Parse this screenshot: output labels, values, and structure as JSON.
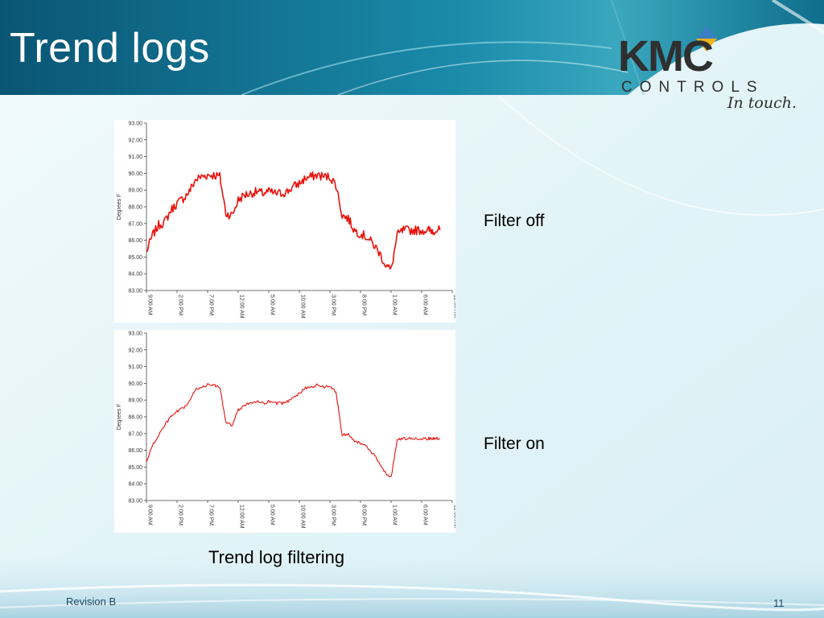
{
  "slide": {
    "title": "Trend logs",
    "brand": {
      "name": "KMC",
      "sub": "CONTROLS",
      "tagline": "In touch."
    },
    "label_filter_off": "Filter off",
    "label_filter_on": "Filter on",
    "caption": "Trend log filtering",
    "footer_left": "Revision B",
    "page_number": "11"
  },
  "colors": {
    "series": "#e8120c",
    "title_band": "#0d5d7a",
    "accent": "#1e86a8"
  },
  "chart_data": [
    {
      "type": "line",
      "ylabel": "Degrees F",
      "ylim": [
        83,
        93
      ],
      "yticks": [
        "93.00",
        "92.00",
        "91.00",
        "90.00",
        "89.00",
        "88.00",
        "87.00",
        "86.00",
        "85.00",
        "84.00",
        "83.00"
      ],
      "xticks": [
        "9:00 AM",
        "2:00 PM",
        "7:00 PM",
        "12:00 AM",
        "5:00 AM",
        "10:00 AM",
        "3:00 PM",
        "8:00 PM",
        "1:00 AM",
        "6:00 AM",
        "11:00 AM"
      ],
      "xlim": [
        0,
        50
      ],
      "noise": 0.55,
      "series": [
        {
          "x": [
            0,
            1,
            2,
            3,
            4,
            5,
            6,
            7,
            8,
            9,
            10,
            11,
            12,
            13,
            14,
            15,
            16,
            17,
            18,
            19,
            20,
            21,
            22,
            23,
            24,
            25,
            26,
            27,
            28,
            29,
            30,
            31,
            32,
            33,
            34,
            35,
            36,
            37,
            38,
            39,
            40,
            41,
            42,
            43,
            44,
            45,
            46,
            46.5,
            47,
            48
          ],
          "y": [
            85.3,
            86.3,
            86.9,
            87.1,
            87.8,
            88.2,
            88.5,
            88.9,
            89.6,
            89.8,
            89.9,
            89.9,
            89.8,
            87.6,
            87.5,
            88.4,
            88.7,
            88.8,
            88.9,
            88.8,
            88.9,
            88.8,
            88.8,
            88.9,
            89.2,
            89.4,
            89.7,
            89.8,
            89.9,
            89.8,
            89.8,
            89.3,
            87.5,
            87.3,
            86.6,
            86.4,
            86.2,
            85.8,
            85.3,
            84.6,
            84.2,
            86.3,
            86.6,
            86.6,
            86.6,
            86.6,
            86.6,
            86.6,
            86.6,
            86.6
          ]
        }
      ]
    },
    {
      "type": "line",
      "ylabel": "Degrees F",
      "ylim": [
        83,
        93
      ],
      "yticks": [
        "93.00",
        "92.00",
        "91.00",
        "90.00",
        "89.00",
        "88.00",
        "87.00",
        "86.00",
        "85.00",
        "84.00",
        "83.00"
      ],
      "xticks": [
        "9:00 AM",
        "2:00 PM",
        "7:00 PM",
        "12:00 AM",
        "5:00 AM",
        "10:00 AM",
        "3:00 PM",
        "8:00 PM",
        "1:00 AM",
        "6:00 AM",
        "11:00 AM"
      ],
      "xlim": [
        0,
        50
      ],
      "noise": 0.18,
      "series": [
        {
          "x": [
            0,
            1,
            2,
            3,
            4,
            5,
            6,
            7,
            8,
            9,
            10,
            11,
            12,
            13,
            14,
            15,
            16,
            17,
            18,
            19,
            20,
            21,
            22,
            23,
            24,
            25,
            26,
            27,
            28,
            29,
            30,
            31,
            32,
            33,
            34,
            35,
            36,
            37,
            38,
            39,
            40,
            41,
            42,
            43,
            44,
            45,
            46,
            46.5,
            47,
            48
          ],
          "y": [
            85.3,
            86.3,
            86.9,
            87.5,
            88.0,
            88.3,
            88.5,
            88.9,
            89.6,
            89.8,
            89.9,
            89.9,
            89.8,
            87.6,
            87.5,
            88.4,
            88.7,
            88.8,
            88.9,
            88.8,
            88.9,
            88.8,
            88.8,
            88.9,
            89.2,
            89.4,
            89.7,
            89.8,
            89.9,
            89.8,
            89.8,
            89.5,
            86.9,
            87.0,
            86.6,
            86.4,
            86.2,
            85.8,
            85.3,
            84.7,
            84.4,
            86.6,
            86.7,
            86.7,
            86.7,
            86.7,
            86.7,
            86.7,
            86.7,
            86.7
          ]
        }
      ]
    }
  ]
}
